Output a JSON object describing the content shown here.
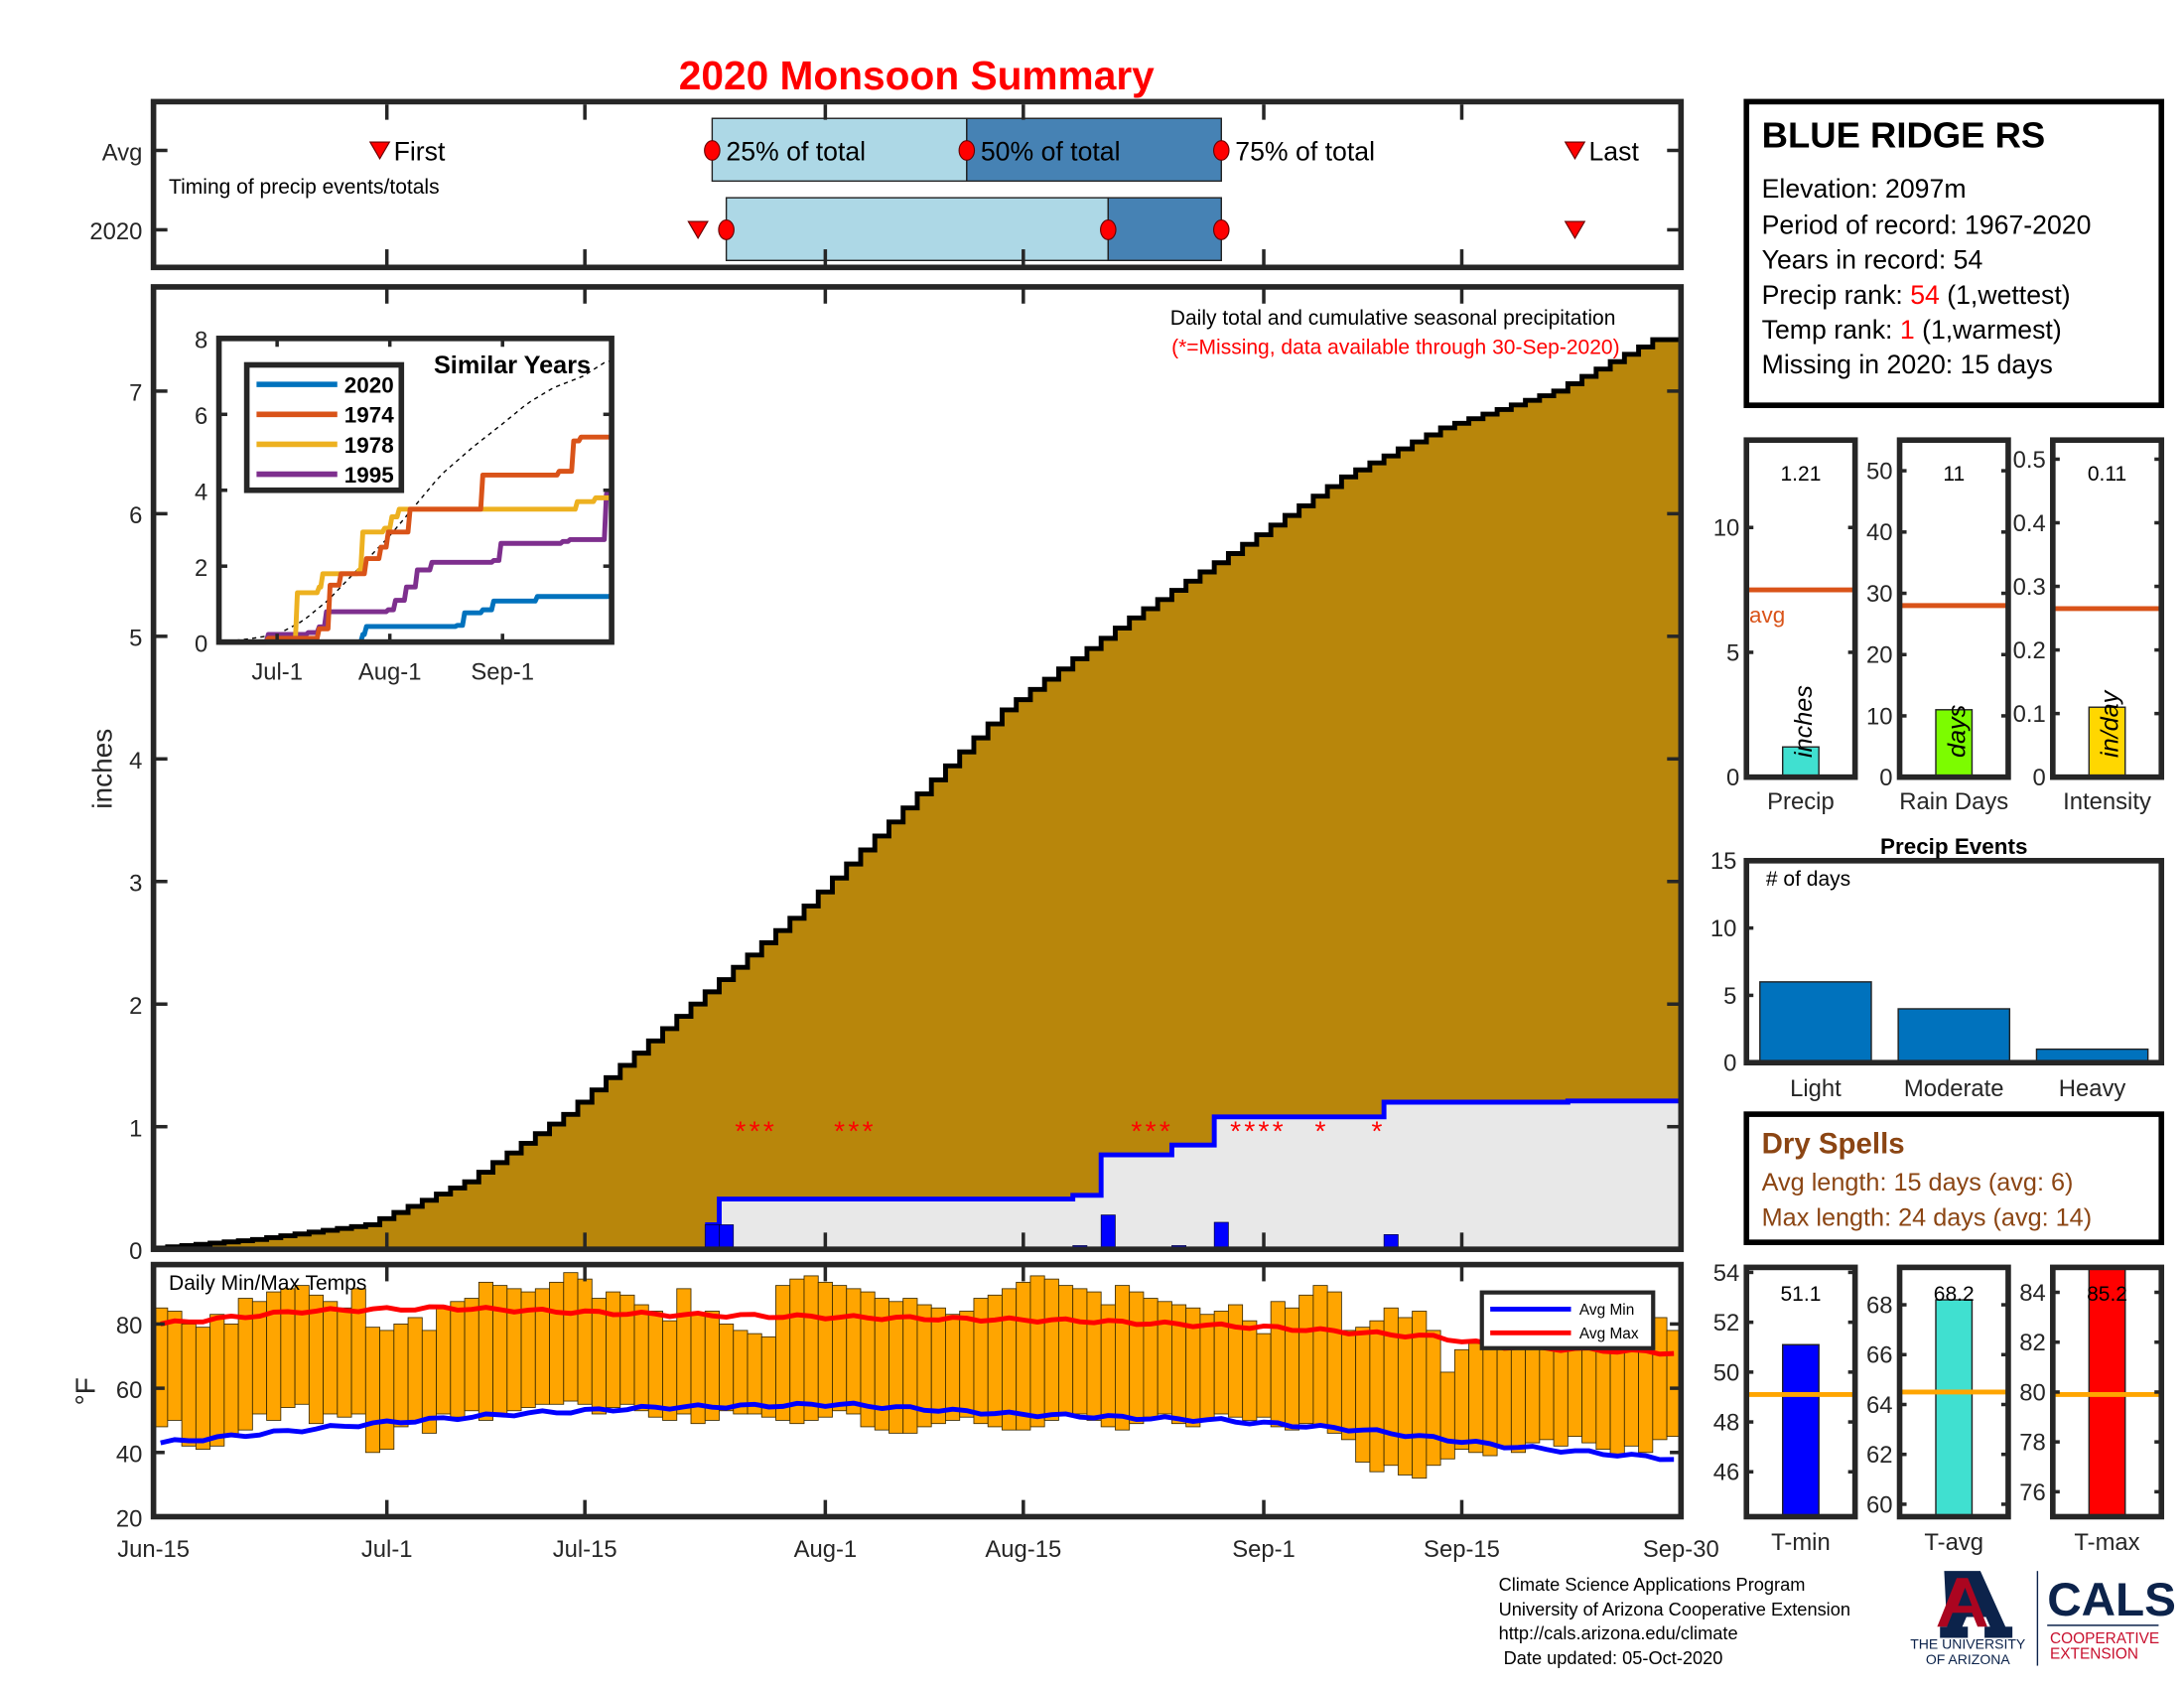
{
  "title": "2020 Monsoon Summary",
  "timing": {
    "row_labels": [
      "Avg",
      "2020"
    ],
    "caption": "Timing of precip events/totals",
    "labels": {
      "first": "First",
      "p25": "25% of total",
      "p50": "50% of total",
      "p75": "75% of total",
      "last": "Last"
    },
    "avg": {
      "first": 15.5,
      "p25": 39,
      "p50": 57,
      "p75": 75,
      "last": 100
    },
    "y2020": {
      "first": 38,
      "p25": 40,
      "p50": 67,
      "p75": 75,
      "last": 100
    }
  },
  "station": {
    "name": "BLUE RIDGE RS",
    "elevation": "Elevation: 2097m",
    "period": "Period of record: 1967-2020",
    "years": "Years in record: 54",
    "precip_rank_label": "Precip rank: ",
    "precip_rank": "54",
    "precip_rank_note": " (1,wettest)",
    "temp_rank_label": "Temp rank: ",
    "temp_rank": "1",
    "temp_rank_note": " (1,warmest)",
    "missing": "Missing in 2020: 15 days"
  },
  "dry_spells": {
    "title": "Dry Spells",
    "avg_length": "Avg length: 15 days (avg: 6)",
    "max_length": "Max length: 24 days (avg: 14)"
  },
  "footer": {
    "lines": [
      "Climate Science Applications Program",
      "University of Arizona Cooperative Extension",
      "http://cals.arizona.edu/climate",
      " Date updated: 05-Oct-2020"
    ],
    "logo_ua": [
      "THE UNIVERSITY",
      "OF ARIZONA"
    ],
    "logo_cals": "CALS",
    "logo_cals_sub": [
      "COOPERATIVE",
      "EXTENSION"
    ]
  },
  "colors": {
    "avg_area": "#b8860b",
    "missing_area": "#e8e8e8",
    "y2020": "#0000ff",
    "missing": "#ff0000",
    "temp_bar": "#ffa500",
    "avg_min": "#0000ff",
    "avg_max": "#ff0000",
    "light_blue": "#add8e6",
    "steel_blue": "#4682b4"
  },
  "chart_data": [
    {
      "type": "area",
      "title": "Daily total and cumulative seasonal precipitation",
      "subtitle": "(*=Missing, data available through 30-Sep-2020)",
      "ylabel": "inches",
      "ylim": [
        0,
        7.85
      ],
      "yticks": [
        0,
        1,
        2,
        3,
        4,
        5,
        6,
        7
      ],
      "xticks": [
        {
          "day": 0,
          "label": "Jun-15"
        },
        {
          "day": 16,
          "label": "Jul-1"
        },
        {
          "day": 30,
          "label": "Jul-15"
        },
        {
          "day": 47,
          "label": "Aug-1"
        },
        {
          "day": 61,
          "label": "Aug-15"
        },
        {
          "day": 78,
          "label": "Sep-1"
        },
        {
          "day": 92,
          "label": "Sep-15"
        },
        {
          "day": 107,
          "label": "Sep-30"
        }
      ],
      "days": 108,
      "avg_cumulative": [
        [
          0,
          0
        ],
        [
          8,
          0.08
        ],
        [
          16,
          0.2
        ],
        [
          23,
          0.55
        ],
        [
          30,
          1.1
        ],
        [
          38,
          1.9
        ],
        [
          47,
          2.8
        ],
        [
          54,
          3.6
        ],
        [
          61,
          4.4
        ],
        [
          70,
          5.15
        ],
        [
          78,
          5.75
        ],
        [
          85,
          6.3
        ],
        [
          92,
          6.7
        ],
        [
          100,
          7.0
        ],
        [
          107,
          7.42
        ]
      ],
      "cumulative_2020": [
        [
          0,
          0
        ],
        [
          39,
          0.2
        ],
        [
          40,
          0.41
        ],
        [
          65,
          0.44
        ],
        [
          67,
          0.77
        ],
        [
          72,
          0.85
        ],
        [
          75,
          1.08
        ],
        [
          87,
          1.2
        ],
        [
          100,
          1.21
        ],
        [
          107,
          1.21
        ]
      ],
      "daily_2020": [
        [
          39,
          0.2
        ],
        [
          40,
          0.2
        ],
        [
          65,
          0.03
        ],
        [
          67,
          0.28
        ],
        [
          72,
          0.03
        ],
        [
          75,
          0.22
        ],
        [
          87,
          0.12
        ]
      ],
      "missing_days": [
        41,
        42,
        43,
        48,
        49,
        50,
        69,
        70,
        71,
        76,
        77,
        78,
        79,
        82,
        86
      ]
    },
    {
      "type": "line",
      "title": "Similar Years",
      "ylim": [
        0,
        8
      ],
      "yticks": [
        0,
        2,
        4,
        6,
        8
      ],
      "xticks": [
        {
          "day": 16,
          "label": "Jul-1"
        },
        {
          "day": 47,
          "label": "Aug-1"
        },
        {
          "day": 78,
          "label": "Sep-1"
        }
      ],
      "series": [
        {
          "name": "2020",
          "color": "#0072bd",
          "steps": [
            [
              0,
              0
            ],
            [
              39,
              0.2
            ],
            [
              40,
              0.41
            ],
            [
              65,
              0.44
            ],
            [
              67,
              0.77
            ],
            [
              72,
              0.85
            ],
            [
              75,
              1.08
            ],
            [
              87,
              1.2
            ],
            [
              107,
              1.21
            ]
          ]
        },
        {
          "name": "1974",
          "color": "#d95319",
          "steps": [
            [
              0,
              0
            ],
            [
              13,
              0.1
            ],
            [
              27,
              0.35
            ],
            [
              30,
              1.5
            ],
            [
              33,
              1.8
            ],
            [
              40,
              2.2
            ],
            [
              44,
              2.5
            ],
            [
              46,
              2.9
            ],
            [
              52,
              3.5
            ],
            [
              71,
              3.5
            ],
            [
              72,
              4.4
            ],
            [
              93,
              4.5
            ],
            [
              97,
              5.3
            ],
            [
              99,
              5.4
            ],
            [
              107,
              5.4
            ]
          ]
        },
        {
          "name": "1978",
          "color": "#edb120",
          "steps": [
            [
              0,
              0
            ],
            [
              20,
              0
            ],
            [
              21,
              1.3
            ],
            [
              27,
              1.45
            ],
            [
              28,
              1.8
            ],
            [
              38,
              1.9
            ],
            [
              39,
              2.9
            ],
            [
              45,
              3.0
            ],
            [
              47,
              3.3
            ],
            [
              49,
              3.5
            ],
            [
              95,
              3.5
            ],
            [
              98,
              3.7
            ],
            [
              103,
              3.8
            ],
            [
              107,
              3.8
            ]
          ]
        },
        {
          "name": "1995",
          "color": "#7e2f8e",
          "steps": [
            [
              0,
              0
            ],
            [
              13,
              0.2
            ],
            [
              24,
              0.25
            ],
            [
              27,
              0.4
            ],
            [
              29,
              0.8
            ],
            [
              46,
              0.85
            ],
            [
              48,
              1.1
            ],
            [
              51,
              1.45
            ],
            [
              54,
              1.9
            ],
            [
              58,
              2.1
            ],
            [
              75,
              2.15
            ],
            [
              77,
              2.6
            ],
            [
              94,
              2.65
            ],
            [
              96,
              2.7
            ],
            [
              105,
              2.7
            ],
            [
              106,
              3.9
            ],
            [
              107,
              3.9
            ]
          ]
        }
      ]
    },
    {
      "type": "bar",
      "title": "Daily Min/Max Temps",
      "ylabel": "°F",
      "ylim": [
        20,
        98.5
      ],
      "yticks": [
        20,
        40,
        60,
        80
      ],
      "max": [
        85,
        84,
        80,
        79,
        83,
        80,
        88,
        87,
        90,
        91,
        92,
        89,
        87,
        85,
        91,
        79,
        78,
        80,
        82,
        78,
        85,
        87,
        88,
        93,
        92,
        91,
        90,
        91,
        93,
        96,
        94,
        88,
        90,
        89,
        86,
        84,
        81,
        91,
        83,
        84,
        80,
        78,
        77,
        76,
        92,
        94,
        95,
        93,
        92,
        91,
        90,
        88,
        87,
        88,
        86,
        85,
        83,
        84,
        88,
        89,
        91,
        93,
        95,
        94,
        92,
        91,
        90,
        86,
        92,
        90,
        88,
        87,
        86,
        85,
        83,
        84,
        86,
        81,
        77,
        87,
        85,
        89,
        92,
        90,
        78,
        79,
        81,
        85,
        82,
        84,
        78,
        65,
        72,
        74,
        77,
        79,
        80,
        81,
        80,
        79,
        80,
        76,
        76,
        75,
        77,
        82,
        82,
        78
      ],
      "min": [
        48,
        50,
        42,
        41,
        42,
        45,
        47,
        52,
        50,
        54,
        55,
        49,
        52,
        51,
        52,
        40,
        41,
        48,
        50,
        46,
        52,
        51,
        53,
        50,
        52,
        53,
        54,
        55,
        55,
        56,
        55,
        52,
        54,
        55,
        53,
        51,
        50,
        52,
        49,
        50,
        53,
        52,
        52,
        51,
        50,
        49,
        50,
        51,
        53,
        52,
        48,
        47,
        46,
        46,
        48,
        49,
        50,
        51,
        49,
        48,
        47,
        47,
        48,
        50,
        52,
        52,
        50,
        48,
        47,
        49,
        51,
        52,
        49,
        48,
        50,
        52,
        51,
        50,
        51,
        48,
        47,
        49,
        48,
        46,
        44,
        37,
        34,
        36,
        33,
        32,
        36,
        38,
        41,
        40,
        39,
        42,
        40,
        43,
        44,
        42,
        45,
        43,
        41,
        39,
        42,
        40,
        44,
        45
      ],
      "avg_min": [
        [
          0,
          43
        ],
        [
          5,
          45
        ],
        [
          15,
          49
        ],
        [
          25,
          52
        ],
        [
          35,
          54
        ],
        [
          48,
          55
        ],
        [
          60,
          52
        ],
        [
          75,
          50
        ],
        [
          85,
          47
        ],
        [
          95,
          42
        ],
        [
          107,
          38
        ]
      ],
      "avg_max": [
        [
          0,
          80
        ],
        [
          10,
          84
        ],
        [
          20,
          85
        ],
        [
          35,
          83
        ],
        [
          50,
          82
        ],
        [
          65,
          81
        ],
        [
          78,
          79
        ],
        [
          90,
          76
        ],
        [
          95,
          73
        ],
        [
          107,
          71
        ]
      ],
      "legend": [
        "Avg Min",
        "Avg Max"
      ]
    },
    {
      "type": "bar",
      "label": "Precip",
      "unit": "inches",
      "value": 1.21,
      "value_label": "1.21",
      "avg": 7.5,
      "ylim": [
        0,
        13.5
      ],
      "yticks": [
        0,
        5,
        10
      ],
      "color": "#40e0d0"
    },
    {
      "type": "bar",
      "label": "Rain Days",
      "unit": "days",
      "value": 11,
      "value_label": "11",
      "avg": 28,
      "ylim": [
        0,
        55
      ],
      "yticks": [
        0,
        10,
        20,
        30,
        40,
        50
      ],
      "color": "#7cfc00"
    },
    {
      "type": "bar",
      "label": "Intensity",
      "unit": "in/day",
      "value": 0.11,
      "value_label": "0.11",
      "avg": 0.265,
      "ylim": [
        0,
        0.53
      ],
      "yticks": [
        0,
        0.1,
        0.2,
        0.3,
        0.4,
        0.5
      ],
      "color": "#ffd700"
    },
    {
      "type": "bar",
      "title": "Precip Events",
      "ylabel": "# of days",
      "categories": [
        "Light",
        "Moderate",
        "Heavy"
      ],
      "values": [
        6,
        4,
        1
      ],
      "ylim": [
        0,
        15
      ],
      "yticks": [
        0,
        5,
        10,
        15
      ],
      "color": "#0072bd"
    },
    {
      "type": "bar",
      "label": "T-min",
      "value": 51.1,
      "value_label": "51.1",
      "avg": 49.1,
      "ylim": [
        44.2,
        54.2
      ],
      "yticks": [
        46,
        48,
        50,
        52,
        54
      ],
      "color": "#0000ff"
    },
    {
      "type": "bar",
      "label": "T-avg",
      "value": 68.2,
      "value_label": "68.2",
      "avg": 64.5,
      "ylim": [
        59.5,
        69.5
      ],
      "yticks": [
        60,
        62,
        64,
        66,
        68
      ],
      "color": "#40e0d0"
    },
    {
      "type": "bar",
      "label": "T-max",
      "value": 85.2,
      "value_label": "85.2",
      "avg": 79.9,
      "ylim": [
        75,
        85
      ],
      "yticks": [
        76,
        78,
        80,
        82,
        84
      ],
      "color": "#ff0000"
    }
  ]
}
